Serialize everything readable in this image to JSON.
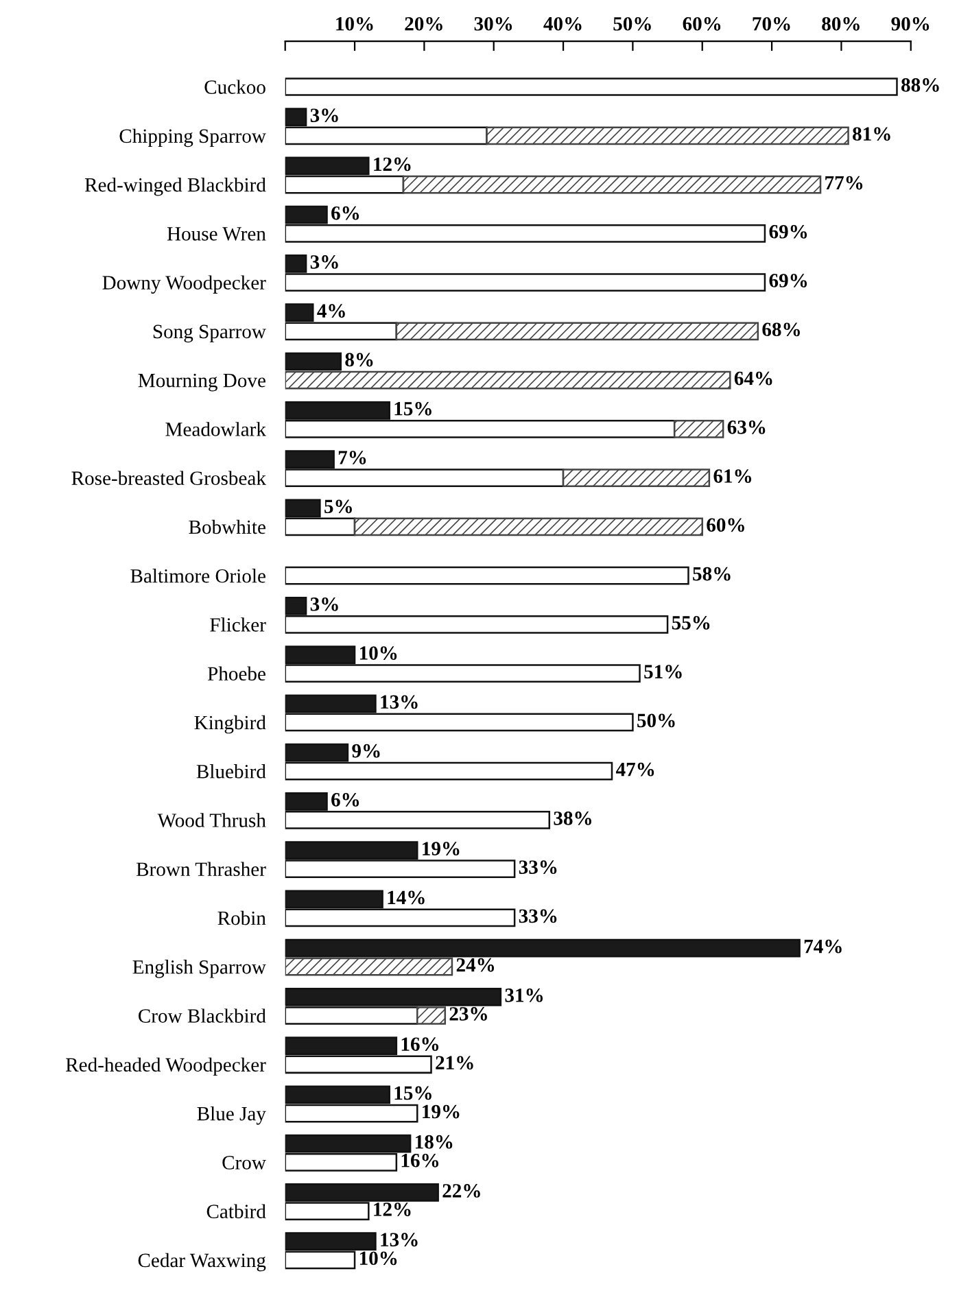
{
  "chart_data": {
    "type": "bar",
    "orientation": "horizontal",
    "categories": [
      "Cuckoo",
      "Chipping Sparrow",
      "Red-winged Blackbird",
      "House Wren",
      "Downy Woodpecker",
      "Song Sparrow",
      "Mourning Dove",
      "Meadowlark",
      "Rose-breasted Grosbeak",
      "Bobwhite",
      "Baltimore Oriole",
      "Flicker",
      "Phoebe",
      "Kingbird",
      "Bluebird",
      "Wood Thrush",
      "Brown Thrasher",
      "Robin",
      "English Sparrow",
      "Crow Blackbird",
      "Red-headed Woodpecker",
      "Blue Jay",
      "Crow",
      "Catbird",
      "Cedar Waxwing"
    ],
    "series": [
      {
        "color": "#1a1a1a",
        "values": [
          null,
          3,
          12,
          6,
          3,
          4,
          8,
          15,
          7,
          5,
          null,
          3,
          10,
          13,
          9,
          6,
          19,
          14,
          74,
          31,
          16,
          15,
          18,
          22,
          13
        ],
        "value_labels": [
          null,
          "3%",
          "12%",
          "6%",
          "3%",
          "4%",
          "8%",
          "15%",
          "7%",
          "5%",
          null,
          "3%",
          "10%",
          "13%",
          "9%",
          "6%",
          "19%",
          "14%",
          "74%",
          "31%",
          "16%",
          "15%",
          "18%",
          "22%",
          "13%"
        ]
      },
      {
        "color": "#ffffff",
        "values": [
          88,
          29,
          17,
          69,
          69,
          16,
          null,
          56,
          40,
          10,
          58,
          55,
          51,
          50,
          47,
          38,
          33,
          33,
          null,
          19,
          21,
          19,
          16,
          12,
          10
        ],
        "value_labels": [
          "88%",
          null,
          null,
          "69%",
          "69%",
          null,
          null,
          null,
          null,
          null,
          "58%",
          "55%",
          "51%",
          "50%",
          "47%",
          "38%",
          "33%",
          "33%",
          null,
          null,
          "21%",
          "19%",
          "16%",
          "12%",
          "10%"
        ]
      },
      {
        "color": "#444444",
        "base": [
          null,
          29,
          17,
          null,
          null,
          16,
          0,
          56,
          40,
          10,
          null,
          null,
          null,
          null,
          null,
          null,
          null,
          null,
          0,
          19,
          null,
          null,
          null,
          null,
          null
        ],
        "values": [
          null,
          52,
          60,
          null,
          null,
          52,
          64,
          7,
          21,
          50,
          null,
          null,
          null,
          null,
          null,
          null,
          null,
          null,
          24,
          4,
          null,
          null,
          null,
          null,
          null
        ],
        "value_labels": [
          null,
          "81%",
          "77%",
          null,
          null,
          "68%",
          "64%",
          "63%",
          "61%",
          "60%",
          null,
          null,
          null,
          null,
          null,
          null,
          null,
          null,
          "24%",
          "23%",
          null,
          null,
          null,
          null,
          null
        ]
      }
    ],
    "xlim": [
      0,
      90
    ],
    "xticks": [
      {
        "value": 0,
        "label": null
      },
      {
        "value": 10,
        "label": "10%"
      },
      {
        "value": 20,
        "label": "20%"
      },
      {
        "value": 30,
        "label": "30%"
      },
      {
        "value": 40,
        "label": "40%"
      },
      {
        "value": 50,
        "label": "50%"
      },
      {
        "value": 60,
        "label": "60%"
      },
      {
        "value": 70,
        "label": "70%"
      },
      {
        "value": 80,
        "label": "80%"
      },
      {
        "value": 90,
        "label": "90%"
      }
    ],
    "grid": false,
    "legend": false
  }
}
